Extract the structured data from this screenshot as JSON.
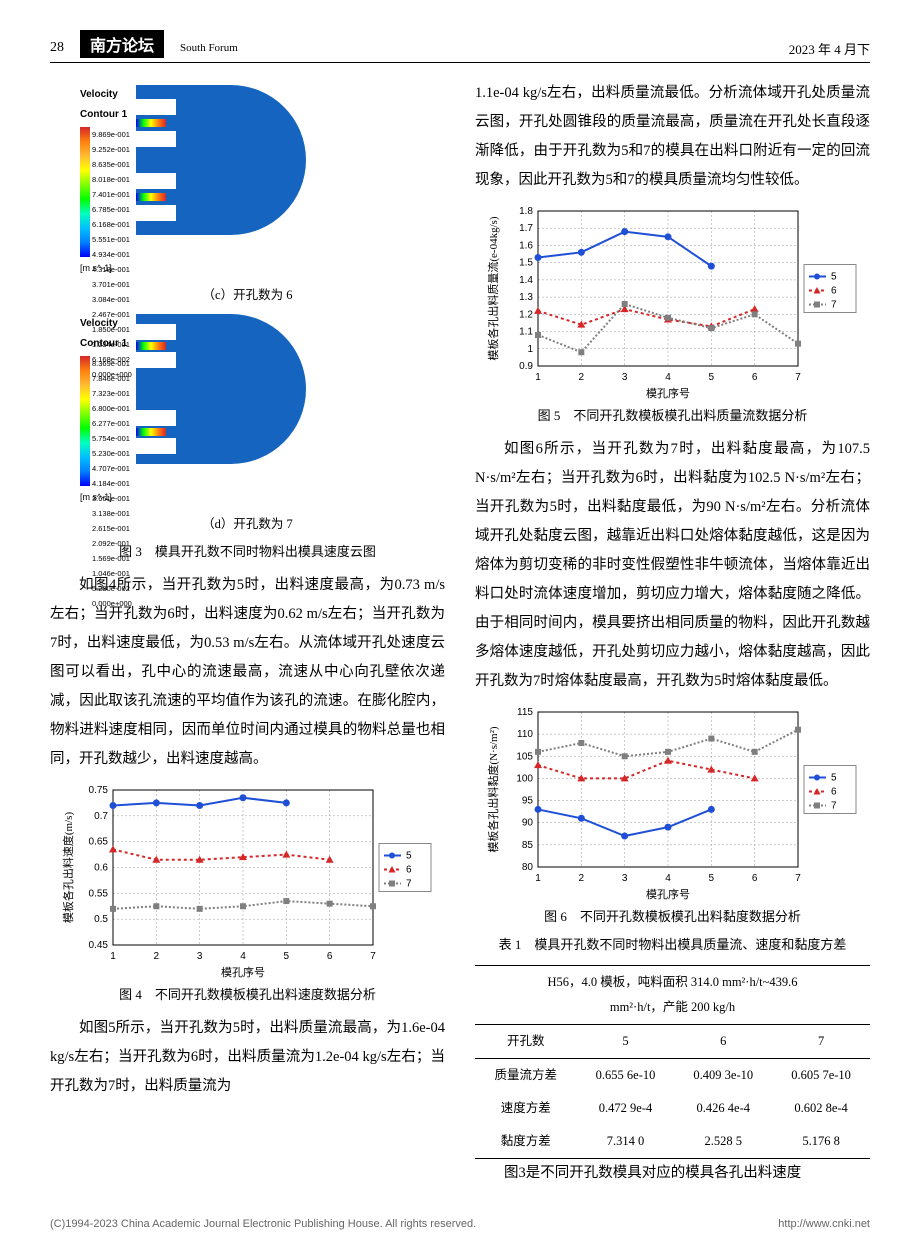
{
  "header": {
    "page_number": "28",
    "journal_cn": "南方论坛",
    "journal_en": "South Forum",
    "date": "2023 年 4 月下"
  },
  "contour_c": {
    "title": "Velocity\nContour 1",
    "values": [
      "9.869e-001",
      "9.252e-001",
      "8.635e-001",
      "8.018e-001",
      "7.401e-001",
      "6.785e-001",
      "6.168e-001",
      "5.551e-001",
      "4.934e-001",
      "4.318e-001",
      "3.701e-001",
      "3.084e-001",
      "2.467e-001",
      "1.850e-001",
      "1.234e-001",
      "6.168e-002",
      "0.000e+000"
    ],
    "unit": "[m s^-1]",
    "caption": "（c）开孔数为 6"
  },
  "contour_d": {
    "title": "Velocity\nContour 1",
    "values": [
      "8.369e-001",
      "7.846e-001",
      "7.323e-001",
      "6.800e-001",
      "6.277e-001",
      "5.754e-001",
      "5.230e-001",
      "4.707e-001",
      "4.184e-001",
      "3.661e-001",
      "3.138e-001",
      "2.615e-001",
      "2.092e-001",
      "1.569e-001",
      "1.046e-001",
      "5.230e-002",
      "0.000e+000"
    ],
    "unit": "[m s^-1]",
    "caption": "（d）开孔数为 7"
  },
  "fig3_caption": "图 3　模具开孔数不同时物料出模具速度云图",
  "para1": "如图4所示，当开孔数为5时，出料速度最高，为0.73 m/s左右；当开孔数为6时，出料速度为0.62 m/s左右；当开孔数为7时，出料速度最低，为0.53 m/s左右。从流体域开孔处速度云图可以看出，孔中心的流速最高，流速从中心向孔壁依次递减，因此取该孔流速的平均值作为该孔的流速。在膨化腔内，物料进料速度相同，因而单位时间内通过模具的物料总量也相同，开孔数越少，出料速度越高。",
  "chart4": {
    "ylabel": "模板各孔出料速度(m/s)",
    "xlabel": "模孔序号",
    "xmin": 1,
    "xmax": 7,
    "ymin": 0.45,
    "ymax": 0.75,
    "yticks": [
      0.45,
      0.5,
      0.55,
      0.6,
      0.65,
      0.7,
      0.75
    ],
    "series": [
      {
        "name": "5",
        "color": "#1f4fd6",
        "marker": "circle",
        "dash": "none",
        "x": [
          1,
          2,
          3,
          4,
          5
        ],
        "y": [
          0.72,
          0.725,
          0.72,
          0.735,
          0.725
        ]
      },
      {
        "name": "6",
        "color": "#d62728",
        "marker": "triangle",
        "dash": "3 3",
        "x": [
          1,
          2,
          3,
          4,
          5,
          6
        ],
        "y": [
          0.635,
          0.615,
          0.615,
          0.62,
          0.625,
          0.615
        ]
      },
      {
        "name": "7",
        "color": "#7f7f7f",
        "marker": "square",
        "dash": "2 2",
        "x": [
          1,
          2,
          3,
          4,
          5,
          6,
          7
        ],
        "y": [
          0.52,
          0.525,
          0.52,
          0.525,
          0.535,
          0.53,
          0.525
        ]
      }
    ],
    "caption": "图 4　不同开孔数模板模孔出料速度数据分析"
  },
  "para2": "如图5所示，当开孔数为5时，出料质量流最高，为1.6e-04 kg/s左右；当开孔数为6时，出料质量流为1.2e-04 kg/s左右；当开孔数为7时，出料质量流为",
  "para3": "1.1e-04 kg/s左右，出料质量流最低。分析流体域开孔处质量流云图，开孔处圆锥段的质量流最高，质量流在开孔处长直段逐渐降低，由于开孔数为5和7的模具在出料口附近有一定的回流现象，因此开孔数为5和7的模具质量流均匀性较低。",
  "chart5": {
    "ylabel": "模板各孔出料质量流(e-04kg/s)",
    "xlabel": "模孔序号",
    "xmin": 1,
    "xmax": 7,
    "ymin": 0.9,
    "ymax": 1.8,
    "yticks": [
      0.9,
      1.0,
      1.1,
      1.2,
      1.3,
      1.4,
      1.5,
      1.6,
      1.7,
      1.8
    ],
    "series": [
      {
        "name": "5",
        "color": "#1f4fd6",
        "marker": "circle",
        "dash": "none",
        "x": [
          1,
          2,
          3,
          4,
          5
        ],
        "y": [
          1.53,
          1.56,
          1.68,
          1.65,
          1.48
        ]
      },
      {
        "name": "6",
        "color": "#d62728",
        "marker": "triangle",
        "dash": "3 3",
        "x": [
          1,
          2,
          3,
          4,
          5,
          6
        ],
        "y": [
          1.22,
          1.14,
          1.23,
          1.17,
          1.13,
          1.23
        ]
      },
      {
        "name": "7",
        "color": "#7f7f7f",
        "marker": "square",
        "dash": "2 2",
        "x": [
          1,
          2,
          3,
          4,
          5,
          6,
          7
        ],
        "y": [
          1.08,
          0.98,
          1.26,
          1.18,
          1.12,
          1.2,
          1.03
        ]
      }
    ],
    "caption": "图 5　不同开孔数模板模孔出料质量流数据分析"
  },
  "para4": "如图6所示，当开孔数为7时，出料黏度最高，为107.5 N·s/m²左右；当开孔数为6时，出料黏度为102.5 N·s/m²左右；当开孔数为5时，出料黏度最低，为90 N·s/m²左右。分析流体域开孔处黏度云图，越靠近出料口处熔体黏度越低，这是因为熔体为剪切变稀的非时变性假塑性非牛顿流体，当熔体靠近出料口处时流体速度增加，剪切应力增大，熔体黏度随之降低。由于相同时间内，模具要挤出相同质量的物料，因此开孔数越多熔体速度越低，开孔处剪切应力越小，熔体黏度越高，因此开孔数为7时熔体黏度最高，开孔数为5时熔体黏度最低。",
  "chart6": {
    "ylabel": "模板各孔出料黏度(N·s/m²)",
    "xlabel": "模孔序号",
    "xmin": 1,
    "xmax": 7,
    "ymin": 80,
    "ymax": 115,
    "yticks": [
      80,
      85,
      90,
      95,
      100,
      105,
      110,
      115
    ],
    "series": [
      {
        "name": "5",
        "color": "#1f4fd6",
        "marker": "circle",
        "dash": "none",
        "x": [
          1,
          2,
          3,
          4,
          5
        ],
        "y": [
          93,
          91,
          87,
          89,
          93
        ]
      },
      {
        "name": "6",
        "color": "#d62728",
        "marker": "triangle",
        "dash": "3 3",
        "x": [
          1,
          2,
          3,
          4,
          5,
          6
        ],
        "y": [
          103,
          100,
          100,
          104,
          102,
          100
        ]
      },
      {
        "name": "7",
        "color": "#7f7f7f",
        "marker": "square",
        "dash": "2 2",
        "x": [
          1,
          2,
          3,
          4,
          5,
          6,
          7
        ],
        "y": [
          106,
          108,
          105,
          106,
          109,
          106,
          111
        ]
      }
    ],
    "caption": "图 6　不同开孔数模板模孔出料黏度数据分析"
  },
  "table1": {
    "caption": "表 1　模具开孔数不同时物料出模具质量流、速度和黏度方差",
    "header_note": "H56，4.0 模板，吨料面积 314.0 mm²·h/t~439.6\nmm²·h/t，产能 200 kg/h",
    "cols": [
      "开孔数",
      "5",
      "6",
      "7"
    ],
    "rows": [
      [
        "质量流方差",
        "0.655 6e-10",
        "0.409 3e-10",
        "0.605 7e-10"
      ],
      [
        "速度方差",
        "0.472 9e-4",
        "0.426 4e-4",
        "0.602 8e-4"
      ],
      [
        "黏度方差",
        "7.314 0",
        "2.528 5",
        "5.176 8"
      ]
    ]
  },
  "para5": "图3是不同开孔数模具对应的模具各孔出料速度",
  "footer": {
    "left": "(C)1994-2023 China Academic Journal Electronic Publishing House. All rights reserved.",
    "right": "http://www.cnki.net"
  }
}
